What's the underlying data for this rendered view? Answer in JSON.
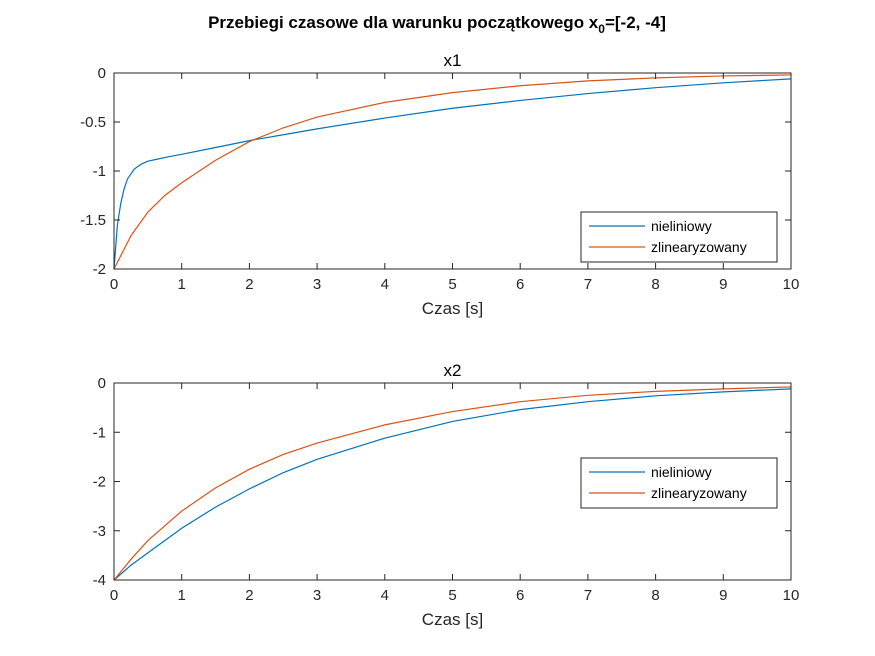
{
  "figure_title": "Przebiegi czasowe dla warunku początkowego x",
  "figure_title_sub": "0",
  "figure_title_tail": "=[-2, -4]",
  "colors": {
    "nieliniowy": "#0072BD",
    "zlinearyzowany": "#D95319"
  },
  "chart_data": [
    {
      "type": "line",
      "title": "x1",
      "xlabel": "Czas [s]",
      "ylabel": "",
      "xlim": [
        0,
        10
      ],
      "ylim": [
        -2,
        0
      ],
      "xticks": [
        "0",
        "1",
        "2",
        "3",
        "4",
        "5",
        "6",
        "7",
        "8",
        "9",
        "10"
      ],
      "yticks": [
        "0",
        "-0.5",
        "-1",
        "-1.5",
        "-2"
      ],
      "ytick_values": [
        0,
        -0.5,
        -1,
        -1.5,
        -2
      ],
      "legend_position": "lower-right",
      "series": [
        {
          "name": "nieliniowy",
          "x": [
            0,
            0.05,
            0.1,
            0.15,
            0.2,
            0.3,
            0.4,
            0.5,
            0.6,
            0.8,
            1,
            1.5,
            2,
            2.5,
            3,
            4,
            5,
            6,
            7,
            8,
            9,
            10
          ],
          "y": [
            -2,
            -1.55,
            -1.33,
            -1.18,
            -1.08,
            -0.98,
            -0.93,
            -0.9,
            -0.885,
            -0.855,
            -0.83,
            -0.76,
            -0.69,
            -0.63,
            -0.57,
            -0.46,
            -0.36,
            -0.28,
            -0.21,
            -0.15,
            -0.1,
            -0.06
          ]
        },
        {
          "name": "zlinearyzowany",
          "x": [
            0,
            0.25,
            0.5,
            0.75,
            1,
            1.5,
            2,
            2.5,
            3,
            4,
            5,
            6,
            7,
            8,
            9,
            10
          ],
          "y": [
            -2,
            -1.66,
            -1.42,
            -1.25,
            -1.12,
            -0.89,
            -0.7,
            -0.56,
            -0.45,
            -0.3,
            -0.2,
            -0.13,
            -0.08,
            -0.05,
            -0.03,
            -0.02
          ]
        }
      ]
    },
    {
      "type": "line",
      "title": "x2",
      "xlabel": "Czas [s]",
      "ylabel": "",
      "xlim": [
        0,
        10
      ],
      "ylim": [
        -4,
        0
      ],
      "xticks": [
        "0",
        "1",
        "2",
        "3",
        "4",
        "5",
        "6",
        "7",
        "8",
        "9",
        "10"
      ],
      "yticks": [
        "0",
        "-1",
        "-2",
        "-3",
        "-4"
      ],
      "ytick_values": [
        0,
        -1,
        -2,
        -3,
        -4
      ],
      "legend_position": "right",
      "series": [
        {
          "name": "nieliniowy",
          "x": [
            0,
            0.25,
            0.5,
            1,
            1.5,
            2,
            2.5,
            3,
            4,
            5,
            6,
            7,
            8,
            9,
            10
          ],
          "y": [
            -4,
            -3.7,
            -3.45,
            -2.95,
            -2.52,
            -2.15,
            -1.82,
            -1.55,
            -1.12,
            -0.78,
            -0.54,
            -0.38,
            -0.26,
            -0.18,
            -0.12
          ]
        },
        {
          "name": "zlinearyzowany",
          "x": [
            0,
            0.25,
            0.5,
            1,
            1.5,
            2,
            2.5,
            3,
            4,
            5,
            6,
            7,
            8,
            9,
            10
          ],
          "y": [
            -4,
            -3.58,
            -3.2,
            -2.6,
            -2.13,
            -1.75,
            -1.45,
            -1.22,
            -0.85,
            -0.58,
            -0.38,
            -0.25,
            -0.17,
            -0.12,
            -0.08
          ]
        }
      ]
    }
  ]
}
